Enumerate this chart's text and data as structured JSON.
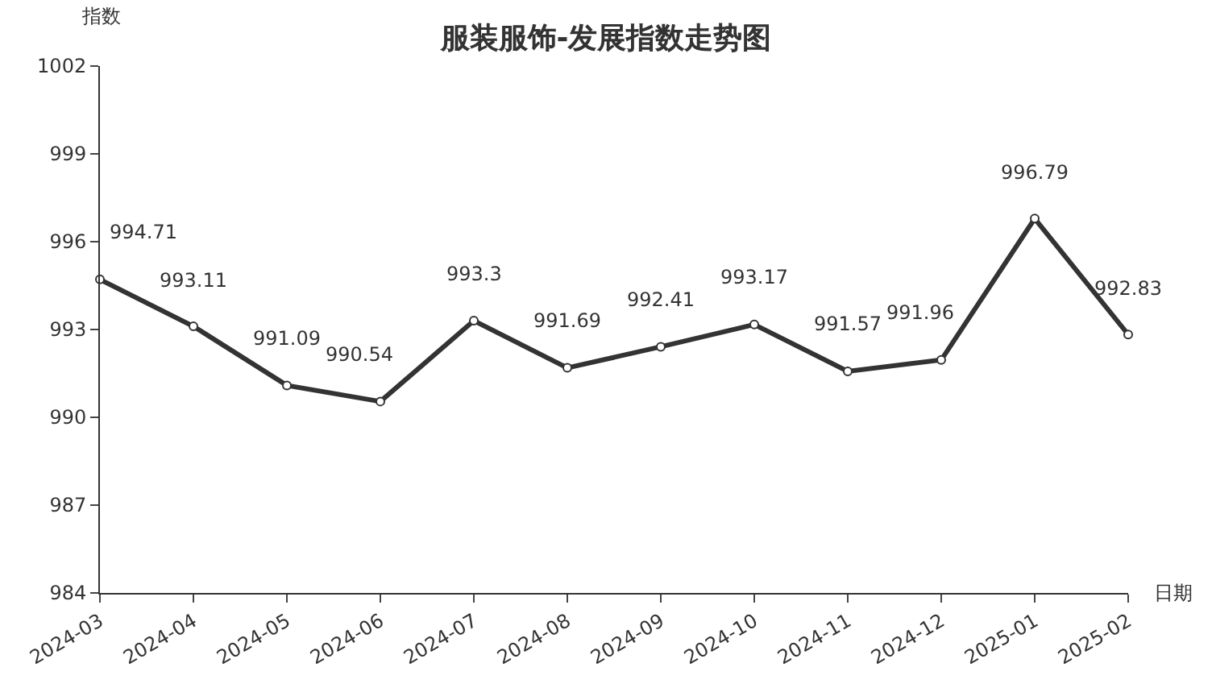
{
  "chart_data": {
    "type": "line",
    "title": "服装服饰-发展指数走势图",
    "xlabel": "日期",
    "ylabel": "指数",
    "categories": [
      "2024-03",
      "2024-04",
      "2024-05",
      "2024-06",
      "2024-07",
      "2024-08",
      "2024-09",
      "2024-10",
      "2024-11",
      "2024-12",
      "2025-01",
      "2025-02"
    ],
    "series": [
      {
        "color": "#333333",
        "values": [
          994.71,
          993.11,
          991.09,
          990.54,
          993.3,
          991.69,
          992.41,
          993.17,
          991.57,
          991.96,
          996.79,
          992.83
        ]
      }
    ],
    "ylim": [
      984,
      1002
    ],
    "yticks": [
      984,
      987,
      990,
      993,
      996,
      999,
      1002
    ],
    "data_labels": true,
    "marker": "circle",
    "line_style": "solid",
    "legend": false
  }
}
